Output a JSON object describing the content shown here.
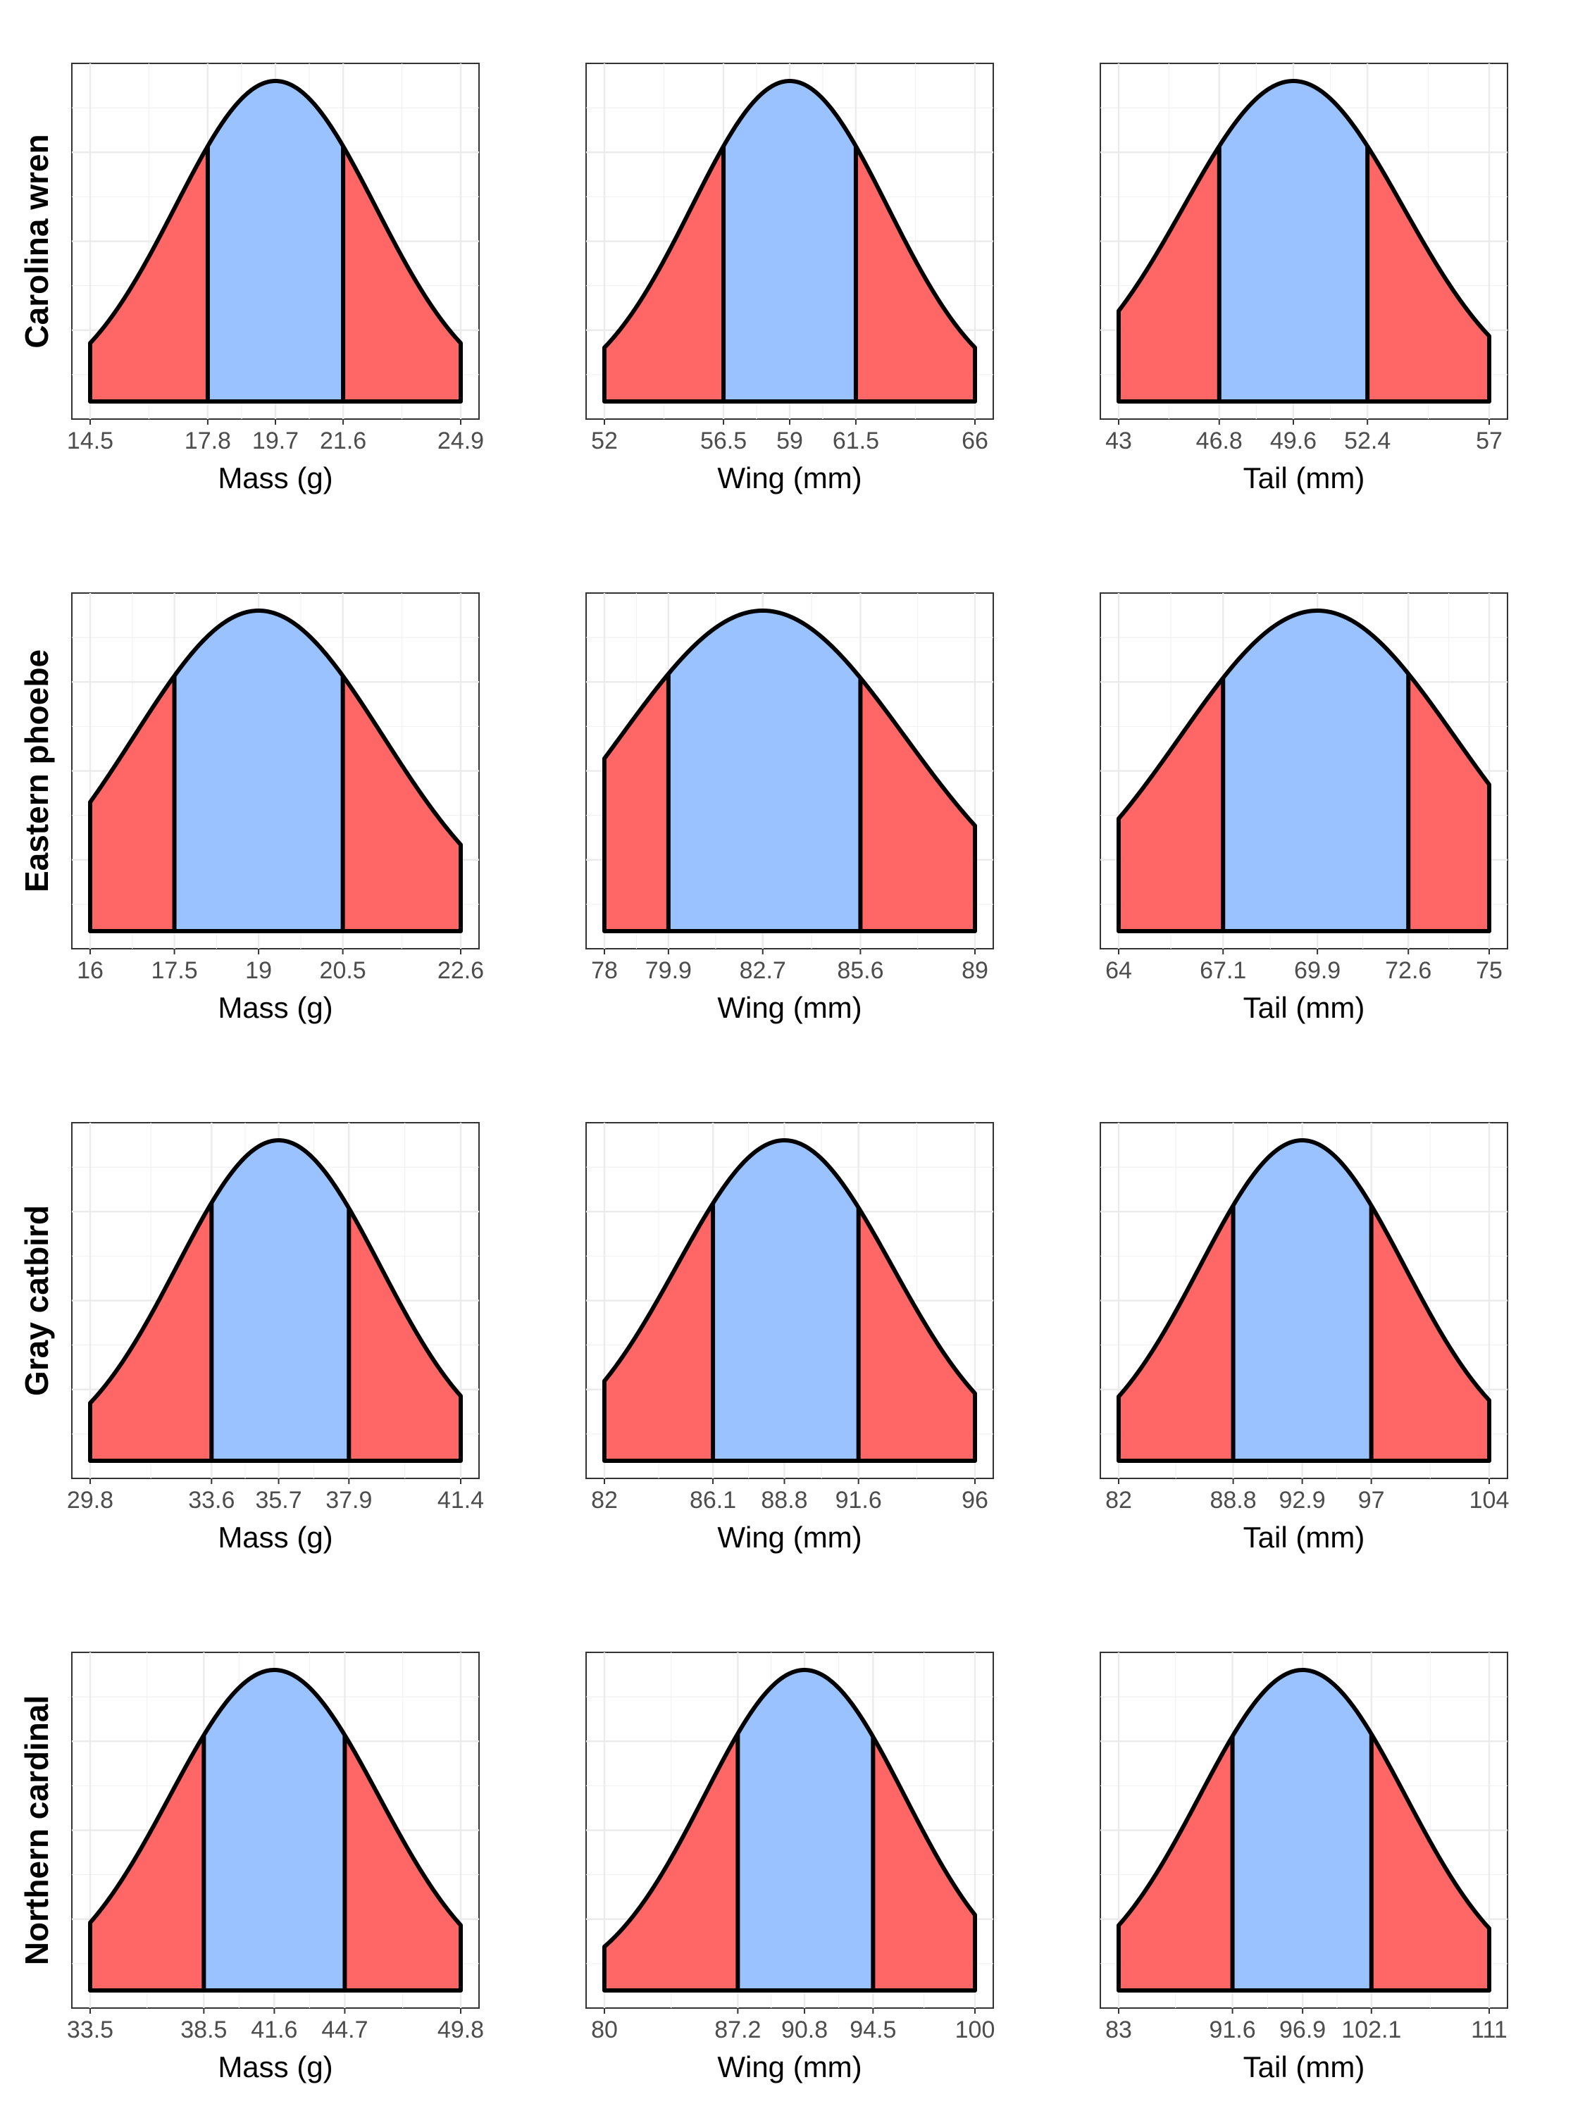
{
  "colors": {
    "tail": "#FF6666",
    "center": "#99C2FF",
    "outline": "#000000"
  },
  "chart_data": [
    {
      "type": "area",
      "species": "Carolina wren",
      "xlabel": "Mass (g)",
      "ticks": [
        14.5,
        17.8,
        19.7,
        21.6,
        24.9
      ],
      "ticks_text": [
        "14.5",
        "17.8",
        "19.7",
        "21.6",
        "24.9"
      ]
    },
    {
      "type": "area",
      "species": "Carolina wren",
      "xlabel": "Wing (mm)",
      "ticks": [
        52,
        56.5,
        59,
        61.5,
        66
      ],
      "ticks_text": [
        "52",
        "56.5",
        "59",
        "61.5",
        "66"
      ]
    },
    {
      "type": "area",
      "species": "Carolina wren",
      "xlabel": "Tail (mm)",
      "ticks": [
        43,
        46.8,
        49.6,
        52.4,
        57
      ],
      "ticks_text": [
        "43",
        "46.8",
        "49.6",
        "52.4",
        "57"
      ]
    },
    {
      "type": "area",
      "species": "Eastern phoebe",
      "xlabel": "Mass (g)",
      "ticks": [
        16,
        17.5,
        19,
        20.5,
        22.6
      ],
      "ticks_text": [
        "16",
        "17.5",
        "19",
        "20.5",
        "22.6"
      ]
    },
    {
      "type": "area",
      "species": "Eastern phoebe",
      "xlabel": "Wing (mm)",
      "ticks": [
        78,
        79.9,
        82.7,
        85.6,
        89
      ],
      "ticks_text": [
        "78",
        "79.9",
        "82.7",
        "85.6",
        "89"
      ]
    },
    {
      "type": "area",
      "species": "Eastern phoebe",
      "xlabel": "Tail (mm)",
      "ticks": [
        64,
        67.1,
        69.9,
        72.6,
        75
      ],
      "ticks_text": [
        "64",
        "67.1",
        "69.9",
        "72.6",
        "75"
      ]
    },
    {
      "type": "area",
      "species": "Gray catbird",
      "xlabel": "Mass (g)",
      "ticks": [
        29.8,
        33.6,
        35.7,
        37.9,
        41.4
      ],
      "ticks_text": [
        "29.8",
        "33.6",
        "35.7",
        "37.9",
        "41.4"
      ]
    },
    {
      "type": "area",
      "species": "Gray catbird",
      "xlabel": "Wing (mm)",
      "ticks": [
        82,
        86.1,
        88.8,
        91.6,
        96
      ],
      "ticks_text": [
        "82",
        "86.1",
        "88.8",
        "91.6",
        "96"
      ]
    },
    {
      "type": "area",
      "species": "Gray catbird",
      "xlabel": "Tail (mm)",
      "ticks": [
        82,
        88.8,
        92.9,
        97,
        104
      ],
      "ticks_text": [
        "82",
        "88.8",
        "92.9",
        "97",
        "104"
      ]
    },
    {
      "type": "area",
      "species": "Northern cardinal",
      "xlabel": "Mass (g)",
      "ticks": [
        33.5,
        38.5,
        41.6,
        44.7,
        49.8
      ],
      "ticks_text": [
        "33.5",
        "38.5",
        "41.6",
        "44.7",
        "49.8"
      ]
    },
    {
      "type": "area",
      "species": "Northern cardinal",
      "xlabel": "Wing (mm)",
      "ticks": [
        80,
        87.2,
        90.8,
        94.5,
        100
      ],
      "ticks_text": [
        "80",
        "87.2",
        "90.8",
        "94.5",
        "100"
      ]
    },
    {
      "type": "area",
      "species": "Northern cardinal",
      "xlabel": "Tail (mm)",
      "ticks": [
        83,
        91.6,
        96.9,
        102.1,
        111
      ],
      "ticks_text": [
        "83",
        "91.6",
        "96.9",
        "102.1",
        "111"
      ]
    }
  ]
}
